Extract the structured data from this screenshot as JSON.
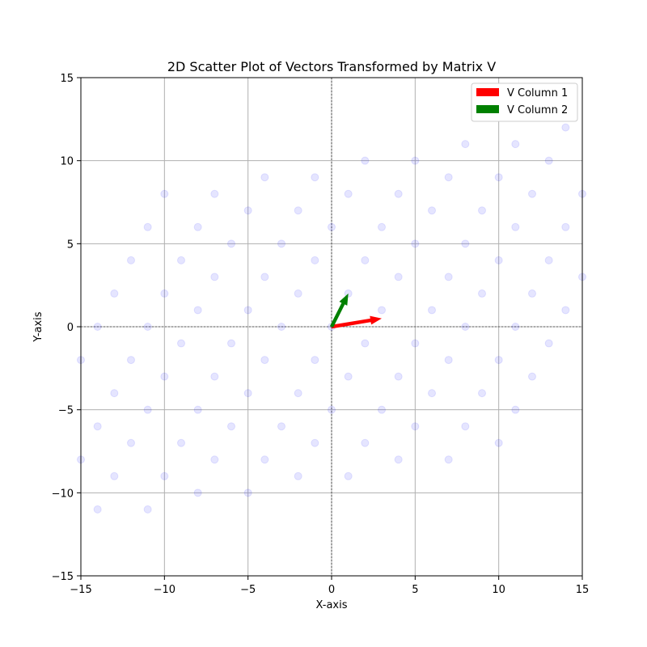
{
  "chart_data": {
    "type": "scatter",
    "title": "2D Scatter Plot of Vectors Transformed by Matrix V",
    "xlabel": "X-axis",
    "ylabel": "Y-axis",
    "xlim": [
      -15,
      15
    ],
    "ylim": [
      -15,
      15
    ],
    "xticks": [
      -15,
      -10,
      -5,
      0,
      5,
      10,
      15
    ],
    "yticks": [
      -15,
      -10,
      -5,
      0,
      5,
      10,
      15
    ],
    "tick_labels": [
      "−15",
      "−10",
      "−5",
      "0",
      "5",
      "10",
      "15"
    ],
    "grid": true,
    "legend_position": "top-right",
    "point_color": "#0000ff",
    "point_opacity": 0.1,
    "matrix_V": [
      [
        3,
        1
      ],
      [
        0.5,
        2
      ]
    ],
    "source_grid_range": [
      -5,
      5
    ],
    "series": [
      {
        "name": "V Column 1",
        "color": "#ff0000",
        "vector": [
          3,
          0.5
        ]
      },
      {
        "name": "V Column 2",
        "color": "#008000",
        "vector": [
          1,
          2
        ]
      }
    ]
  }
}
